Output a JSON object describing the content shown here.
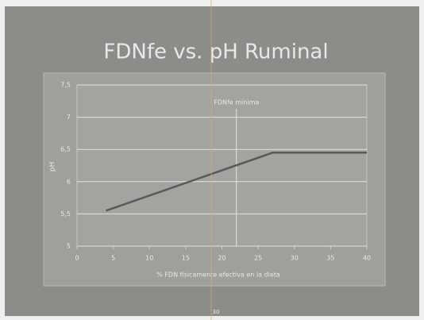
{
  "chart_data": {
    "type": "line",
    "title": "FDNfe vs. pH Ruminal",
    "x_label": "% FDN físicamente efectiva en la dieta",
    "y_label": "pH",
    "x": [
      4,
      27,
      40
    ],
    "series": [
      {
        "name": "pH",
        "color": "#5a5a58",
        "values": [
          5.55,
          6.45,
          6.45
        ]
      }
    ],
    "xlim": [
      0,
      40
    ],
    "xticks": [
      0,
      5,
      10,
      15,
      20,
      25,
      30,
      35,
      40
    ],
    "ylim": [
      5,
      7.5
    ],
    "yticks": [
      5,
      {
        "value": 5.5,
        "label": "5,5"
      },
      6,
      {
        "value": 6.5,
        "label": "6,5"
      },
      7,
      {
        "value": 7.5,
        "label": "7,5"
      }
    ],
    "grid": true,
    "reference_line": {
      "x": 22,
      "label": "FDNfe mínima"
    }
  },
  "slide": {
    "page_number": "30"
  }
}
